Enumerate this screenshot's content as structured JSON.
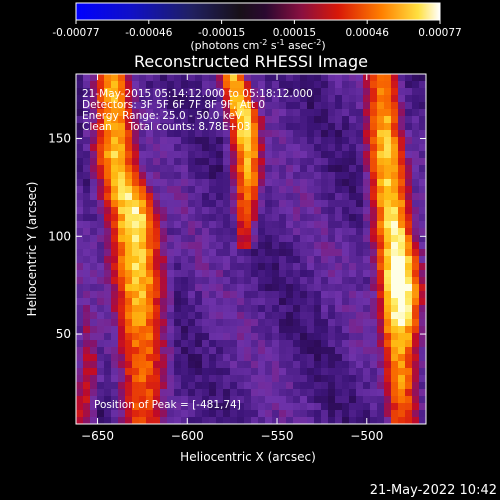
{
  "chart_data": {
    "type": "heatmap",
    "title": "Reconstructed RHESSI Image",
    "xlabel": "Heliocentric X (arcsec)",
    "ylabel": "Heliocentric Y (arcsec)",
    "xlim": [
      -662,
      -467
    ],
    "ylim": [
      4,
      183
    ],
    "x_ticks": [
      -650,
      -600,
      -550,
      -500
    ],
    "y_ticks": [
      50,
      100,
      150
    ],
    "colorbar": {
      "range": [
        -0.00077,
        0.00077
      ],
      "ticks": [
        "-0.00077",
        "-0.00046",
        "-0.00015",
        "0.00015",
        "0.00046",
        "0.00077"
      ],
      "unit_label": {
        "base": "(photons cm",
        "exp1": "-2",
        "mid1": " s",
        "exp2": "-1",
        "mid2": " asec",
        "exp3": "-2",
        "end": ")"
      }
    },
    "annotations": [
      "21-May-2015 05:14:12.000 to 05:18:12.000",
      "Detectors: 3F 5F 6F 7F 8F 9F, Att 0",
      "Energy Range: 25.0 - 50.0 keV",
      "Clean     Total counts: 8.78E+03"
    ],
    "peak_label": "Position of Peak = [-481,74]",
    "emission_bands": [
      {
        "name": "left",
        "y": [
          0,
          40,
          80,
          110,
          140,
          183
        ],
        "x_center": [
          -625,
          -625,
          -628,
          -630,
          -640,
          -642
        ],
        "width": [
          30,
          34,
          36,
          36,
          30,
          26
        ],
        "peak": [
          0.55,
          0.6,
          0.78,
          0.85,
          0.75,
          0.7
        ]
      },
      {
        "name": "center-upper",
        "y": [
          100,
          130,
          160,
          183
        ],
        "x_center": [
          -568,
          -566,
          -568,
          -575
        ],
        "width": [
          14,
          20,
          22,
          18
        ],
        "peak": [
          0.45,
          0.72,
          0.82,
          0.75
        ]
      },
      {
        "name": "right",
        "y": [
          0,
          40,
          74,
          110,
          150,
          183
        ],
        "x_center": [
          -480,
          -482,
          -481,
          -486,
          -490,
          -492
        ],
        "width": [
          22,
          26,
          30,
          28,
          26,
          22
        ],
        "peak": [
          0.55,
          0.72,
          1.0,
          0.8,
          0.75,
          0.65
        ]
      },
      {
        "name": "lower-left-edge",
        "y": [
          0,
          30,
          60
        ],
        "x_center": [
          -660,
          -655,
          -655
        ],
        "width": [
          16,
          16,
          12
        ],
        "peak": [
          0.45,
          0.42,
          0.3
        ]
      }
    ]
  },
  "footer": {
    "timestamp": "21-May-2022 10:42"
  }
}
